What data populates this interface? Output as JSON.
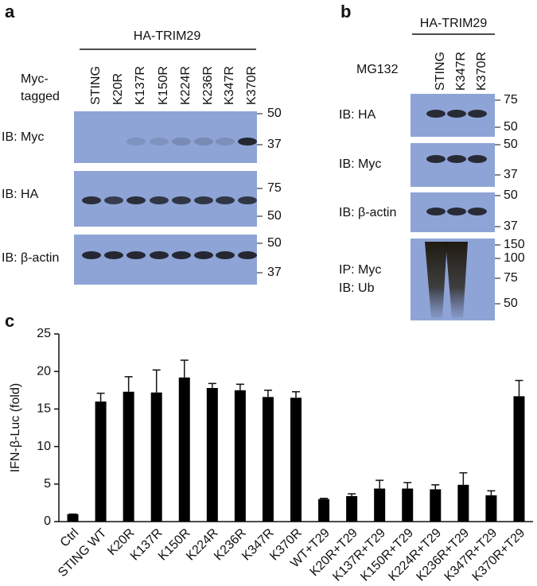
{
  "panel_a": {
    "label": "a",
    "group": "HA-TRIM29",
    "row_label": [
      "Myc-",
      "tagged"
    ],
    "lanes": [
      "STING",
      "K20R",
      "K137R",
      "K150R",
      "K224R",
      "K236R",
      "K347R",
      "K370R"
    ],
    "blots": [
      {
        "label": "IB: Myc",
        "markers": [
          "50",
          "37"
        ]
      },
      {
        "label": "IB: HA",
        "markers": [
          "75",
          "50"
        ]
      },
      {
        "label": "IB: β-actin",
        "markers": [
          "50",
          "37"
        ]
      }
    ]
  },
  "panel_b": {
    "label": "b",
    "group": "HA-TRIM29",
    "treatment": "MG132",
    "lanes": [
      "STING",
      "K347R",
      "K370R"
    ],
    "blots": [
      {
        "label": [
          "IB: HA"
        ],
        "markers": [
          "75",
          "50"
        ]
      },
      {
        "label": [
          "IB: Myc"
        ],
        "markers": [
          "50",
          "37"
        ]
      },
      {
        "label": [
          "IB: β-actin"
        ],
        "markers": [
          "50",
          "37"
        ]
      },
      {
        "label": [
          "IP: Myc",
          "IB: Ub"
        ],
        "markers": [
          "150",
          "100",
          "75",
          "50"
        ]
      }
    ]
  },
  "chart_data": {
    "type": "bar",
    "panel_label": "c",
    "ylabel": "IFN-β-Luc (fold)",
    "categories": [
      "Ctrl",
      "STING WT",
      "K20R",
      "K137R",
      "K150R",
      "K224R",
      "K236R",
      "K347R",
      "K370R",
      "WT+T29",
      "K20R+T29",
      "K137R+T29",
      "K150R+T29",
      "K224R+T29",
      "K236R+T29",
      "K347R+T29",
      "K370R+T29"
    ],
    "values": [
      1,
      16,
      17.3,
      17.2,
      19.2,
      17.8,
      17.5,
      16.6,
      16.5,
      3,
      3.4,
      4.4,
      4.4,
      4.3,
      4.9,
      3.5,
      16.7
    ],
    "errors": [
      0,
      1.1,
      2,
      3,
      2.3,
      0.6,
      0.8,
      0.9,
      0.8,
      0.1,
      0.3,
      1.1,
      0.8,
      0.6,
      1.6,
      0.6,
      2.1
    ],
    "color": "#000000",
    "ylim": [
      0,
      25
    ],
    "yticks": [
      0,
      5,
      10,
      15,
      20,
      25
    ]
  }
}
